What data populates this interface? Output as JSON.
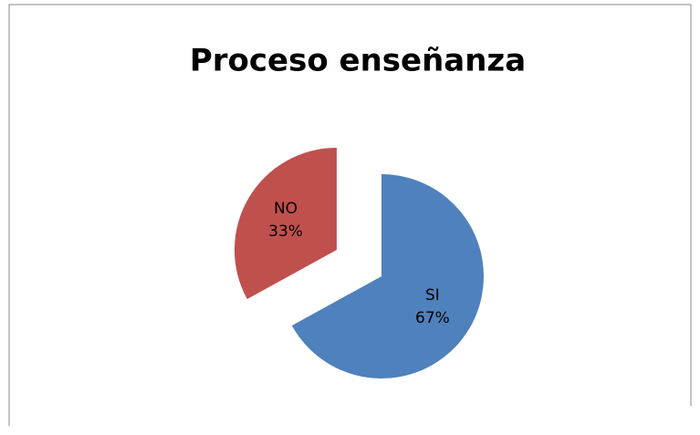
{
  "chart_data": {
    "type": "pie",
    "title": "Proceso enseñanza",
    "categories": [
      "SI",
      "NO"
    ],
    "values": [
      67,
      33
    ],
    "value_labels": [
      "67%",
      "33%"
    ],
    "colors": [
      "#4f81bd",
      "#c0504d"
    ]
  }
}
